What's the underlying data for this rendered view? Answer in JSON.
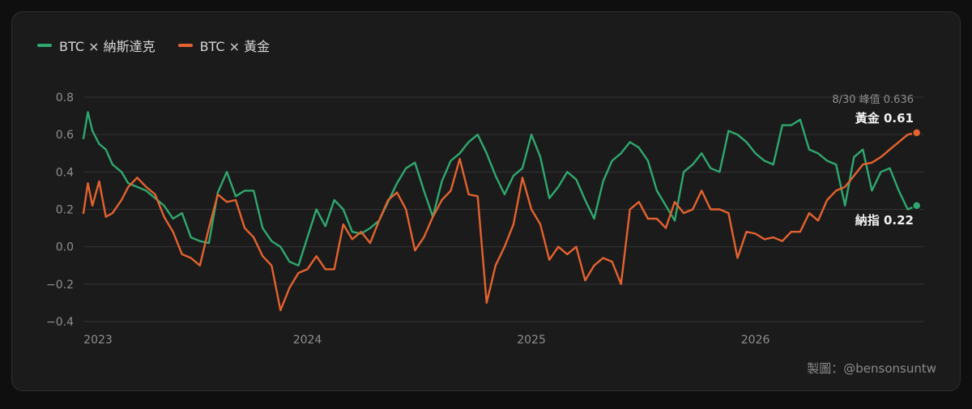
{
  "colors": {
    "nasdaq": "#2fa86f",
    "gold": "#e4622f",
    "grid": "#343434",
    "tick": "#8e8e8e"
  },
  "legend": [
    {
      "name": "BTC × 納斯達克",
      "color": "#2fa86f"
    },
    {
      "name": "BTC × 黃金",
      "color": "#e4622f"
    }
  ],
  "credit": "製圖：@bensonsuntw",
  "chart_data": {
    "type": "line",
    "ylim": [
      -0.4,
      0.8
    ],
    "yticks": [
      "0.8",
      "0.6",
      "0.4",
      "0.2",
      "0.0",
      "−0.2",
      "−0.4"
    ],
    "ytick_values": [
      0.8,
      0.6,
      0.4,
      0.2,
      0.0,
      -0.2,
      -0.4
    ],
    "xlim": [
      2023.0,
      2026.75
    ],
    "xticks": [
      "2023",
      "2024",
      "2025",
      "2026"
    ],
    "xtick_values": [
      2023,
      2024,
      2025,
      2026
    ],
    "grid": true,
    "legend_position": "top-left",
    "series": [
      {
        "name": "BTC × 納斯達克",
        "x": [
          2023.0,
          2023.02,
          2023.04,
          2023.07,
          2023.1,
          2023.13,
          2023.17,
          2023.2,
          2023.24,
          2023.28,
          2023.32,
          2023.36,
          2023.4,
          2023.44,
          2023.48,
          2023.52,
          2023.56,
          2023.6,
          2023.64,
          2023.68,
          2023.72,
          2023.76,
          2023.8,
          2023.84,
          2023.88,
          2023.92,
          2023.96,
          2024.0,
          2024.04,
          2024.08,
          2024.12,
          2024.16,
          2024.2,
          2024.24,
          2024.28,
          2024.32,
          2024.36,
          2024.4,
          2024.44,
          2024.48,
          2024.52,
          2024.56,
          2024.6,
          2024.64,
          2024.68,
          2024.72,
          2024.76,
          2024.8,
          2024.84,
          2024.88,
          2024.92,
          2024.96,
          2025.0,
          2025.04,
          2025.08,
          2025.12,
          2025.16,
          2025.2,
          2025.24,
          2025.28,
          2025.32,
          2025.36,
          2025.4,
          2025.44,
          2025.48,
          2025.52,
          2025.56,
          2025.6,
          2025.64,
          2025.68,
          2025.72,
          2025.76,
          2025.8,
          2025.84,
          2025.88,
          2025.92,
          2025.96,
          2026.0,
          2026.04,
          2026.08,
          2026.12,
          2026.16,
          2026.2,
          2026.24,
          2026.28,
          2026.32,
          2026.36,
          2026.4,
          2026.44,
          2026.48,
          2026.52,
          2026.56,
          2026.6,
          2026.64,
          2026.68,
          2026.72
        ],
        "y": [
          0.58,
          0.72,
          0.62,
          0.55,
          0.52,
          0.44,
          0.4,
          0.34,
          0.32,
          0.3,
          0.26,
          0.22,
          0.15,
          0.18,
          0.05,
          0.03,
          0.02,
          0.29,
          0.4,
          0.27,
          0.3,
          0.3,
          0.1,
          0.03,
          0.0,
          -0.08,
          -0.1,
          0.05,
          0.2,
          0.11,
          0.25,
          0.2,
          0.08,
          0.07,
          0.1,
          0.14,
          0.24,
          0.34,
          0.42,
          0.45,
          0.3,
          0.16,
          0.35,
          0.46,
          0.5,
          0.56,
          0.6,
          0.5,
          0.38,
          0.28,
          0.38,
          0.42,
          0.6,
          0.48,
          0.26,
          0.32,
          0.4,
          0.36,
          0.25,
          0.15,
          0.35,
          0.46,
          0.5,
          0.56,
          0.53,
          0.46,
          0.3,
          0.22,
          0.14,
          0.4,
          0.44,
          0.5,
          0.42,
          0.4,
          0.62,
          0.6,
          0.56,
          0.5,
          0.46,
          0.44,
          0.65,
          0.65,
          0.68,
          0.52,
          0.5,
          0.46,
          0.44,
          0.22,
          0.48,
          0.52,
          0.3,
          0.4,
          0.42,
          0.3,
          0.2,
          0.22
        ],
        "end_label": "納指 0.22"
      },
      {
        "name": "BTC × 黃金",
        "x": [
          2023.0,
          2023.02,
          2023.04,
          2023.07,
          2023.1,
          2023.13,
          2023.17,
          2023.2,
          2023.24,
          2023.28,
          2023.32,
          2023.36,
          2023.4,
          2023.44,
          2023.48,
          2023.52,
          2023.56,
          2023.6,
          2023.64,
          2023.68,
          2023.72,
          2023.76,
          2023.8,
          2023.84,
          2023.88,
          2023.92,
          2023.96,
          2024.0,
          2024.04,
          2024.08,
          2024.12,
          2024.16,
          2024.2,
          2024.24,
          2024.28,
          2024.32,
          2024.36,
          2024.4,
          2024.44,
          2024.48,
          2024.52,
          2024.56,
          2024.6,
          2024.64,
          2024.68,
          2024.72,
          2024.76,
          2024.8,
          2024.84,
          2024.88,
          2024.92,
          2024.96,
          2025.0,
          2025.04,
          2025.08,
          2025.12,
          2025.16,
          2025.2,
          2025.24,
          2025.28,
          2025.32,
          2025.36,
          2025.4,
          2025.44,
          2025.48,
          2025.52,
          2025.56,
          2025.6,
          2025.64,
          2025.68,
          2025.72,
          2025.76,
          2025.8,
          2025.84,
          2025.88,
          2025.92,
          2025.96,
          2026.0,
          2026.04,
          2026.08,
          2026.12,
          2026.16,
          2026.2,
          2026.24,
          2026.28,
          2026.32,
          2026.36,
          2026.4,
          2026.44,
          2026.48,
          2026.52,
          2026.56,
          2026.6,
          2026.64,
          2026.68,
          2026.72
        ],
        "y": [
          0.18,
          0.34,
          0.22,
          0.35,
          0.16,
          0.18,
          0.25,
          0.32,
          0.37,
          0.32,
          0.28,
          0.16,
          0.08,
          -0.04,
          -0.06,
          -0.1,
          0.1,
          0.28,
          0.24,
          0.25,
          0.1,
          0.05,
          -0.05,
          -0.1,
          -0.34,
          -0.22,
          -0.14,
          -0.12,
          -0.05,
          -0.12,
          -0.12,
          0.12,
          0.04,
          0.08,
          0.02,
          0.14,
          0.25,
          0.29,
          0.2,
          -0.02,
          0.05,
          0.16,
          0.25,
          0.3,
          0.47,
          0.28,
          0.27,
          -0.3,
          -0.1,
          0.0,
          0.12,
          0.37,
          0.2,
          0.12,
          -0.07,
          0.0,
          -0.04,
          0.0,
          -0.18,
          -0.1,
          -0.06,
          -0.08,
          -0.2,
          0.2,
          0.24,
          0.15,
          0.15,
          0.1,
          0.24,
          0.18,
          0.2,
          0.3,
          0.2,
          0.2,
          0.18,
          -0.06,
          0.08,
          0.07,
          0.04,
          0.05,
          0.03,
          0.08,
          0.08,
          0.18,
          0.14,
          0.25,
          0.3,
          0.32,
          0.38,
          0.44,
          0.45,
          0.48,
          0.52,
          0.56,
          0.6,
          0.61
        ],
        "end_label": "黃金 0.61"
      }
    ],
    "annotations": [
      {
        "text": "8/30 峰值 0.636",
        "series": "BTC × 黃金"
      }
    ]
  }
}
